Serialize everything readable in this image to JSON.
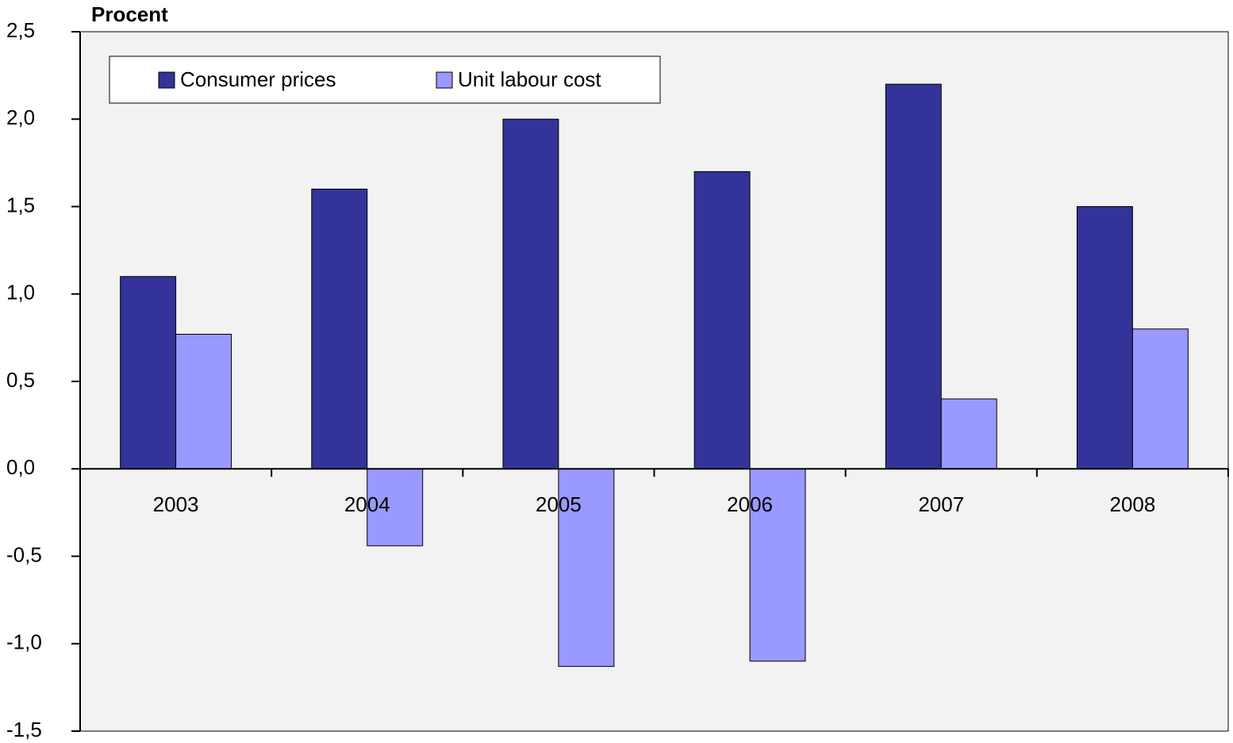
{
  "chart_data": {
    "type": "bar",
    "ylabel": "Procent",
    "categories": [
      "2003",
      "2004",
      "2005",
      "2006",
      "2007",
      "2008"
    ],
    "series": [
      {
        "name": "Consumer prices",
        "color": "#333399",
        "values": [
          1.1,
          1.6,
          2.0,
          1.7,
          2.2,
          1.5
        ]
      },
      {
        "name": "Unit labour cost",
        "color": "#9999ff",
        "values": [
          0.77,
          -0.44,
          -1.13,
          -1.1,
          0.4,
          0.8
        ]
      }
    ],
    "ylim": [
      -1.5,
      2.5
    ],
    "yticks": [
      {
        "value": -1.5,
        "label": "-1,5"
      },
      {
        "value": -1.0,
        "label": "-1,0"
      },
      {
        "value": -0.5,
        "label": "-0,5"
      },
      {
        "value": 0,
        "label": "0,0"
      },
      {
        "value": 0.5,
        "label": "0,5"
      },
      {
        "value": 1.0,
        "label": "1,0"
      },
      {
        "value": 1.5,
        "label": "1,5"
      },
      {
        "value": 2.0,
        "label": "2,0"
      },
      {
        "value": 2.5,
        "label": "2,5"
      }
    ],
    "grid": false,
    "legend": "top-left"
  }
}
